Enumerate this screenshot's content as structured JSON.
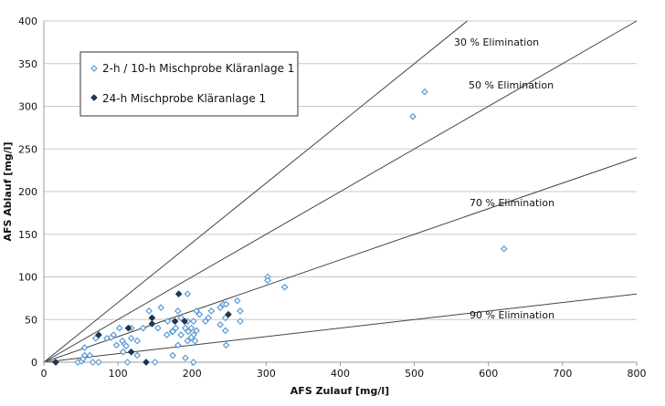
{
  "chart_data": {
    "type": "scatter",
    "xlabel": "AFS Zulauf [mg/l]",
    "ylabel": "AFS Ablauf [mg/l]",
    "xlim": [
      0,
      800
    ],
    "ylim": [
      0,
      400
    ],
    "xticks": [
      0,
      100,
      200,
      300,
      400,
      500,
      600,
      700,
      800
    ],
    "yticks": [
      0,
      50,
      100,
      150,
      200,
      250,
      300,
      350,
      400
    ],
    "grid": "horizontal",
    "legend_position": "top-left",
    "reference_lines": [
      {
        "label": "30 % Elimination",
        "slope": 0.7
      },
      {
        "label": "50 % Elimination",
        "slope": 0.5
      },
      {
        "label": "70 % Elimination",
        "slope": 0.3
      },
      {
        "label": "90 % Elimination",
        "slope": 0.1
      }
    ],
    "series": [
      {
        "name": "2-h / 10-h Mischprobe Kläranlage 1",
        "color": "#5b9bd5",
        "marker": "open-diamond",
        "points": [
          [
            46,
            0
          ],
          [
            51,
            1
          ],
          [
            53,
            4
          ],
          [
            66,
            0
          ],
          [
            74,
            0
          ],
          [
            55,
            8
          ],
          [
            62,
            8
          ],
          [
            55,
            17
          ],
          [
            70,
            28
          ],
          [
            85,
            28
          ],
          [
            91,
            29
          ],
          [
            94,
            32
          ],
          [
            98,
            20
          ],
          [
            106,
            25
          ],
          [
            109,
            21
          ],
          [
            111,
            19
          ],
          [
            118,
            28
          ],
          [
            126,
            25
          ],
          [
            102,
            40
          ],
          [
            118,
            40
          ],
          [
            134,
            40
          ],
          [
            142,
            60
          ],
          [
            158,
            64
          ],
          [
            154,
            40
          ],
          [
            166,
            32
          ],
          [
            167,
            48
          ],
          [
            173,
            36
          ],
          [
            107,
            12
          ],
          [
            126,
            8
          ],
          [
            113,
            0
          ],
          [
            150,
            0
          ],
          [
            181,
            60
          ],
          [
            185,
            52
          ],
          [
            194,
            48
          ],
          [
            202,
            48
          ],
          [
            185,
            32
          ],
          [
            191,
            40
          ],
          [
            195,
            36
          ],
          [
            199,
            40
          ],
          [
            206,
            37
          ],
          [
            202,
            32
          ],
          [
            199,
            29
          ],
          [
            204,
            25
          ],
          [
            194,
            25
          ],
          [
            181,
            20
          ],
          [
            174,
            8
          ],
          [
            191,
            5
          ],
          [
            202,
            0
          ],
          [
            206,
            60
          ],
          [
            210,
            56
          ],
          [
            218,
            48
          ],
          [
            222,
            52
          ],
          [
            226,
            60
          ],
          [
            238,
            64
          ],
          [
            242,
            68
          ],
          [
            246,
            68
          ],
          [
            261,
            72
          ],
          [
            265,
            60
          ],
          [
            265,
            48
          ],
          [
            245,
            52
          ],
          [
            238,
            44
          ],
          [
            245,
            37
          ],
          [
            246,
            20
          ],
          [
            302,
            100
          ],
          [
            302,
            96
          ],
          [
            325,
            88
          ],
          [
            178,
            40
          ],
          [
            174,
            36
          ],
          [
            194,
            80
          ],
          [
            498,
            288
          ],
          [
            514,
            317
          ],
          [
            621,
            133
          ]
        ]
      },
      {
        "name": "24-h Mischprobe Kläranlage 1",
        "color": "#1f3550",
        "marker": "dark-diamond",
        "points": [
          [
            16,
            0
          ],
          [
            74,
            32
          ],
          [
            114,
            40
          ],
          [
            146,
            52
          ],
          [
            146,
            45
          ],
          [
            118,
            12
          ],
          [
            138,
            0
          ],
          [
            182,
            80
          ],
          [
            177,
            48
          ],
          [
            190,
            48
          ],
          [
            249,
            56
          ]
        ]
      }
    ]
  }
}
